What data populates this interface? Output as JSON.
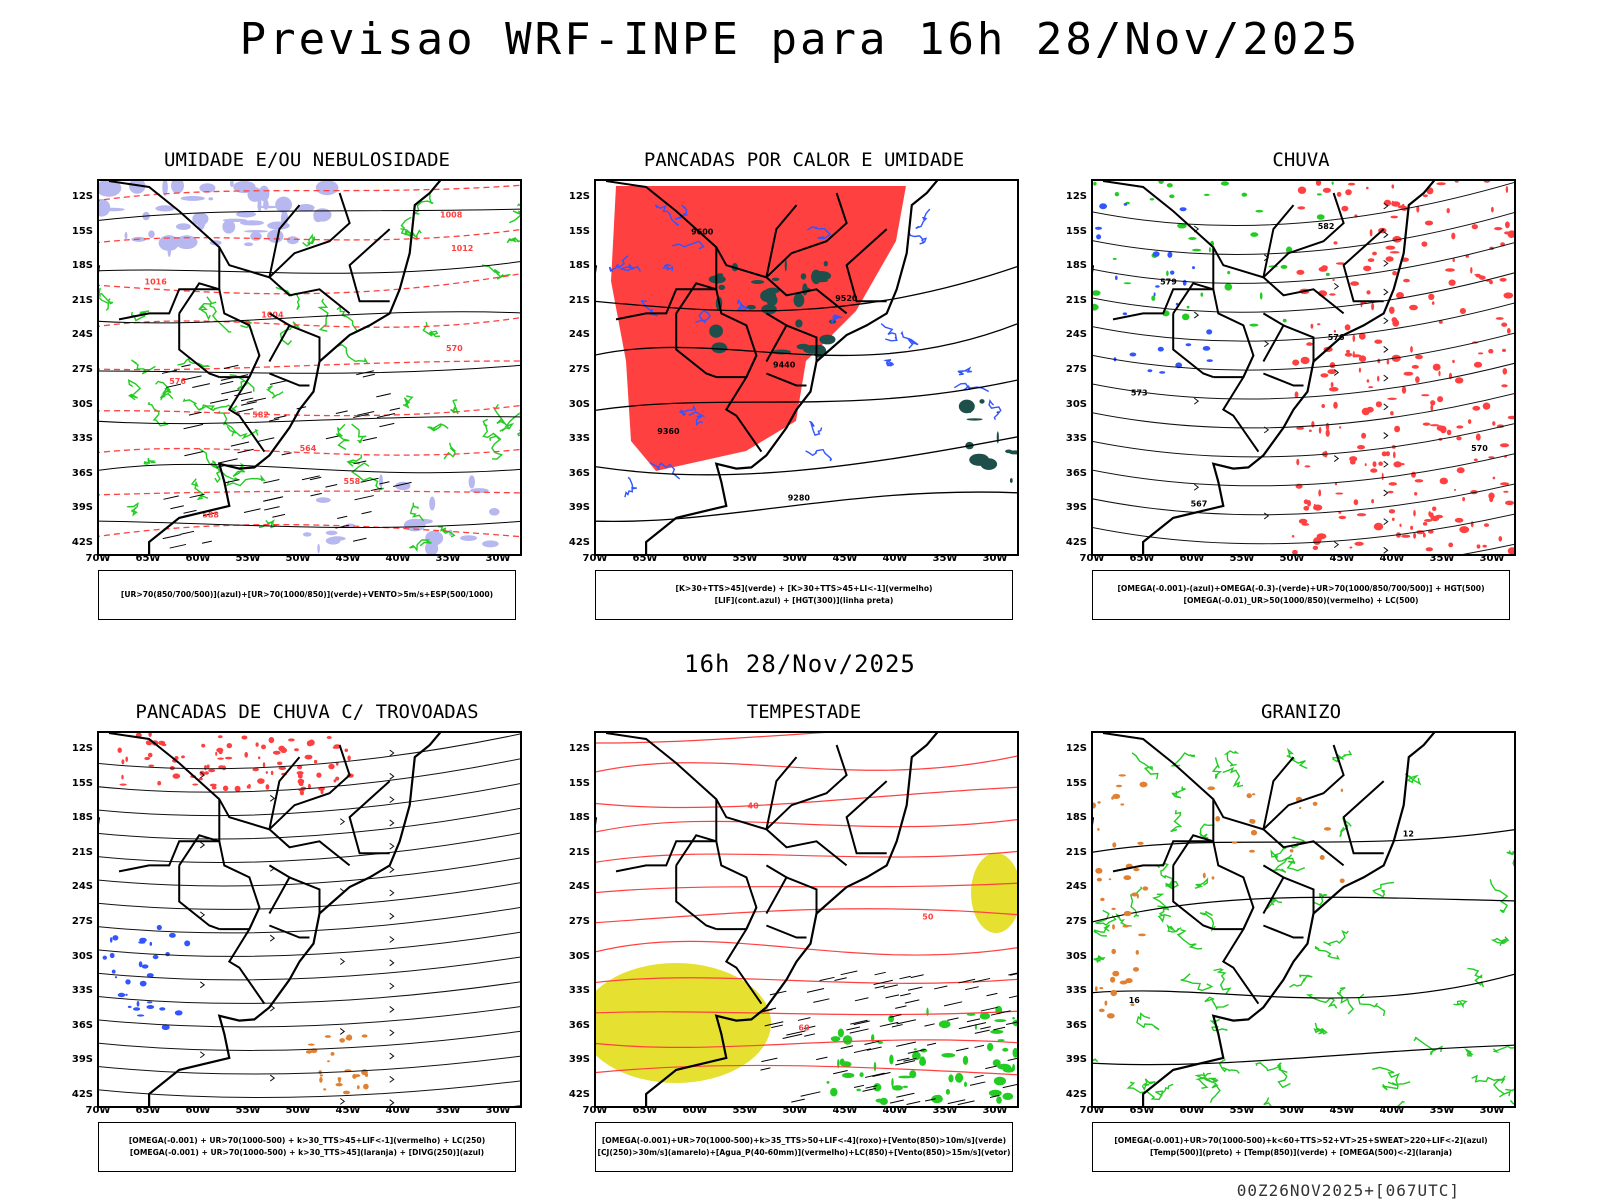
{
  "title": "Previsao WRF-INPE  para 16h 28/Nov/2025",
  "mid_title": "16h 28/Nov/2025",
  "footer": "00Z26NOV2025+[067UTC]",
  "axes": {
    "lat_labels": [
      "12S",
      "15S",
      "18S",
      "21S",
      "24S",
      "27S",
      "30S",
      "33S",
      "36S",
      "39S",
      "42S"
    ],
    "lon_labels": [
      "70W",
      "65W",
      "60W",
      "55W",
      "50W",
      "45W",
      "40W",
      "35W",
      "30W"
    ]
  },
  "colors": {
    "red": "#ff4040",
    "green": "#22cc22",
    "blue": "#3355ff",
    "lavender": "#b8b8f0",
    "yellow": "#e6e030",
    "orange": "#e08030",
    "darkgreen": "#1f4f4a"
  },
  "panels": [
    {
      "title": "UMIDADE E/OU NEBULOSIDADE",
      "legend": [
        "[UR>70(850/700/500)](azul)+[UR>70(1000/850)](verde)+VENTO>5m/s+ESP(500/1000)"
      ],
      "contour_labels": [
        "1008",
        "1012",
        "1016",
        "1004",
        "570",
        "576",
        "582",
        "564",
        "558",
        "588"
      ]
    },
    {
      "title": "PANCADAS POR CALOR E UMIDADE",
      "legend": [
        "[K>30+TTS>45](verde) + [K>30+TTS>45+LI<-1](vermelho)",
        "[LIF](cont.azul) + [HGT(300)](linha preta)"
      ],
      "contour_labels": [
        "9600",
        "9520",
        "9440",
        "9360",
        "9280"
      ]
    },
    {
      "title": "CHUVA",
      "legend": [
        "[OMEGA(-0.001)-(azul)+OMEGA(-0.3)-(verde)+UR>70(1000/850/700/500)] + HGT(500)",
        "[OMEGA(-0.01)_UR>50(1000/850)(vermelho) + LC(500)"
      ],
      "contour_labels": [
        "582",
        "579",
        "576",
        "573",
        "570",
        "567"
      ]
    },
    {
      "title": "PANCADAS DE CHUVA C/ TROVOADAS",
      "legend": [
        "[OMEGA(-0.001) + UR>70(1000-500) + k>30_TTS>45+LIF<-1](vermelho) + LC(250)",
        "[OMEGA(-0.001) + UR>70(1000-500) + k>30_TTS>45](laranja) + [DIVG(250)](azul)"
      ],
      "contour_labels": []
    },
    {
      "title": "TEMPESTADE",
      "legend": [
        "[OMEGA(-0.001)+UR>70(1000-500)+k>35_TTS>50+LIF<-4](roxo)+[Vento(850)>10m/s](verde)",
        "[CJ(250)>30m/s](amarelo)+[Agua_P(40-60mm)](vermelho)+LC(850)+[Vento(850)>15m/s](vetor)"
      ],
      "contour_labels": [
        "40",
        "50",
        "60"
      ]
    },
    {
      "title": "GRANIZO",
      "legend": [
        "[OMEGA(-0.001)+UR>70(1000-500)+k<60+TTS>52+VT>25+SWEAT>220+LIF<-2](azul)",
        "[Temp(500)](preto) + [Temp(850)](verde) + [OMEGA(500)<-2](laranja)"
      ],
      "contour_labels": [
        "12",
        "16"
      ]
    }
  ]
}
